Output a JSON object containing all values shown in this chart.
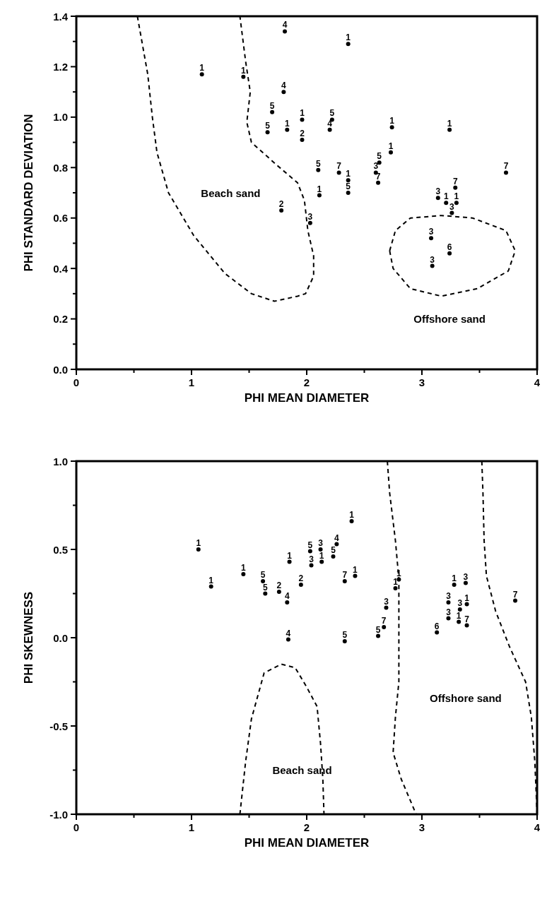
{
  "chart_data": [
    {
      "type": "scatter",
      "xlabel": "PHI MEAN DIAMETER",
      "ylabel": "PHI STANDARD DEVIATION",
      "marker": "circle",
      "xlim": [
        0,
        4
      ],
      "ylim": [
        0,
        1.4
      ],
      "xticks": [
        0,
        {
          "value": 0.5,
          "label": null
        },
        1,
        {
          "value": 1.5,
          "label": null
        },
        2,
        {
          "value": 2.5,
          "label": null
        },
        3,
        {
          "value": 3.5,
          "label": null
        },
        4
      ],
      "yticks": [
        {
          "value": 0,
          "label": "0.0"
        },
        {
          "value": 0.1,
          "label": null
        },
        0.2,
        {
          "value": 0.3,
          "label": null
        },
        0.4,
        {
          "value": 0.5,
          "label": null
        },
        0.6,
        {
          "value": 0.7,
          "label": null
        },
        0.8,
        {
          "value": 0.9,
          "label": null
        },
        {
          "value": 1,
          "label": "1.0"
        },
        {
          "value": 1.1,
          "label": null
        },
        1.2,
        {
          "value": 1.3,
          "label": null
        },
        1.4
      ],
      "series": [
        {
          "name": "1",
          "color": "#000000",
          "x": [
            1.09,
            1.45,
            1.96,
            1.83,
            2.36,
            2.74,
            3.24,
            2.73,
            2.36,
            2.11,
            3.21,
            3.3
          ],
          "values": [
            1.17,
            1.16,
            0.99,
            0.95,
            1.29,
            0.96,
            0.95,
            0.86,
            0.75,
            0.69,
            0.66,
            0.66
          ]
        },
        {
          "name": "2",
          "color": "#000000",
          "x": [
            1.96,
            1.78
          ],
          "values": [
            0.91,
            0.63
          ]
        },
        {
          "name": "3",
          "color": "#000000",
          "x": [
            2.6,
            2.03,
            3.14,
            3.26,
            3.08,
            3.09
          ],
          "values": [
            0.78,
            0.58,
            0.68,
            0.62,
            0.52,
            0.41
          ]
        },
        {
          "name": "4",
          "color": "#000000",
          "x": [
            1.81,
            1.8,
            2.2
          ],
          "values": [
            1.34,
            1.1,
            0.95
          ]
        },
        {
          "name": "5",
          "color": "#000000",
          "x": [
            1.7,
            1.66,
            2.22,
            2.1,
            2.36,
            2.63
          ],
          "values": [
            1.02,
            0.94,
            0.99,
            0.79,
            0.7,
            0.82
          ]
        },
        {
          "name": "6",
          "color": "#000000",
          "x": [
            3.24
          ],
          "values": [
            0.46
          ]
        },
        {
          "name": "7",
          "color": "#000000",
          "x": [
            2.28,
            2.62,
            3.73,
            3.29
          ],
          "values": [
            0.78,
            0.74,
            0.78,
            0.72
          ]
        },
        {
          "type": "line",
          "color": "#000000",
          "line_style": "dashed",
          "marker": "none",
          "x": [
            0.53,
            0.62,
            0.66,
            0.7,
            0.8,
            1.02,
            1.29,
            1.52,
            1.72,
            1.92,
            1.99,
            2.06,
            2.06,
            2.01,
            1.98,
            1.92,
            1.74,
            1.52,
            1.48,
            1.51,
            1.47,
            1.42
          ],
          "values": [
            1.4,
            1.17,
            1.0,
            0.86,
            0.7,
            0.53,
            0.38,
            0.3,
            0.27,
            0.29,
            0.3,
            0.37,
            0.45,
            0.55,
            0.67,
            0.74,
            0.81,
            0.9,
            0.98,
            1.1,
            1.22,
            1.4
          ]
        },
        {
          "type": "line",
          "color": "#000000",
          "line_style": "dashed",
          "marker": "none",
          "x": [
            2.72,
            2.77,
            2.9,
            3.17,
            3.44,
            3.73,
            3.81
          ],
          "values": [
            0.47,
            0.55,
            0.6,
            0.61,
            0.6,
            0.55,
            0.47
          ]
        },
        {
          "type": "line",
          "color": "#000000",
          "line_style": "dashed",
          "marker": "none",
          "x": [
            2.72,
            2.75,
            2.9,
            3.17,
            3.48,
            3.75,
            3.81
          ],
          "values": [
            0.47,
            0.4,
            0.32,
            0.29,
            0.32,
            0.39,
            0.47
          ]
        }
      ],
      "annotations": [
        "Beach sand",
        "Offshore sand"
      ]
    },
    {
      "type": "scatter",
      "xlabel": "PHI MEAN DIAMETER",
      "ylabel": "PHI SKEWNESS",
      "marker": "circle",
      "xlim": [
        0,
        4
      ],
      "ylim": [
        -1,
        1
      ],
      "xticks": [
        0,
        {
          "value": 0.5,
          "label": null
        },
        1,
        {
          "value": 1.5,
          "label": null
        },
        2,
        {
          "value": 2.5,
          "label": null
        },
        3,
        {
          "value": 3.5,
          "label": null
        },
        4
      ],
      "yticks": [
        {
          "value": -1,
          "label": "-1.0"
        },
        {
          "value": -0.75,
          "label": null
        },
        -0.5,
        {
          "value": -0.25,
          "label": null
        },
        {
          "value": 0,
          "label": "0.0"
        },
        {
          "value": 0.25,
          "label": null
        },
        0.5,
        {
          "value": 0.75,
          "label": null
        },
        {
          "value": 1,
          "label": "1.0"
        }
      ],
      "series": [
        {
          "name": "1",
          "color": "#000000",
          "x": [
            1.06,
            1.17,
            1.45,
            1.85,
            2.39,
            2.13,
            2.42,
            2.8,
            2.77,
            3.28,
            3.39,
            3.32
          ],
          "values": [
            0.5,
            0.29,
            0.36,
            0.43,
            0.66,
            0.43,
            0.35,
            0.33,
            0.28,
            0.3,
            0.19,
            0.09
          ]
        },
        {
          "name": "2",
          "color": "#000000",
          "x": [
            1.76,
            1.95
          ],
          "values": [
            0.26,
            0.3
          ]
        },
        {
          "name": "3",
          "color": "#000000",
          "x": [
            2.12,
            2.04,
            2.69,
            3.38,
            3.23,
            3.33,
            3.23
          ],
          "values": [
            0.5,
            0.41,
            0.17,
            0.31,
            0.2,
            0.16,
            0.11
          ]
        },
        {
          "name": "4",
          "color": "#000000",
          "x": [
            1.83,
            1.84,
            2.26
          ],
          "values": [
            0.2,
            -0.01,
            0.53
          ]
        },
        {
          "name": "5",
          "color": "#000000",
          "x": [
            1.62,
            1.64,
            2.03,
            2.23,
            2.62,
            2.33
          ],
          "values": [
            0.32,
            0.25,
            0.49,
            0.46,
            0.01,
            -0.02
          ]
        },
        {
          "name": "6",
          "color": "#000000",
          "x": [
            3.13
          ],
          "values": [
            0.03
          ]
        },
        {
          "name": "7",
          "color": "#000000",
          "x": [
            2.33,
            2.67,
            3.39,
            3.81
          ],
          "values": [
            0.32,
            0.06,
            0.07,
            0.21
          ]
        },
        {
          "type": "line",
          "color": "#000000",
          "line_style": "dashed",
          "marker": "none",
          "x": [
            1.42,
            1.47,
            1.52,
            1.63,
            1.78,
            1.9,
            2.0,
            2.09,
            2.12,
            2.14,
            2.15
          ],
          "values": [
            -1,
            -0.7,
            -0.46,
            -0.2,
            -0.15,
            -0.17,
            -0.28,
            -0.39,
            -0.6,
            -0.8,
            -1
          ]
        },
        {
          "type": "line",
          "color": "#000000",
          "line_style": "dashed",
          "marker": "none",
          "x": [
            2.7,
            2.72,
            2.77,
            2.8,
            2.8,
            2.8,
            2.77,
            2.75,
            2.82,
            2.95
          ],
          "values": [
            1,
            0.82,
            0.55,
            0.33,
            0.02,
            -0.25,
            -0.45,
            -0.65,
            -0.8,
            -1
          ]
        },
        {
          "type": "line",
          "color": "#000000",
          "line_style": "dashed",
          "marker": "none",
          "x": [
            3.52,
            3.53,
            3.54,
            3.56,
            3.64,
            3.76,
            3.9,
            3.95,
            3.98,
            4.0
          ],
          "values": [
            1,
            0.82,
            0.55,
            0.35,
            0.15,
            -0.05,
            -0.25,
            -0.45,
            -0.7,
            -1
          ]
        }
      ],
      "annotations": [
        "Beach sand",
        "Offshore sand"
      ]
    }
  ]
}
